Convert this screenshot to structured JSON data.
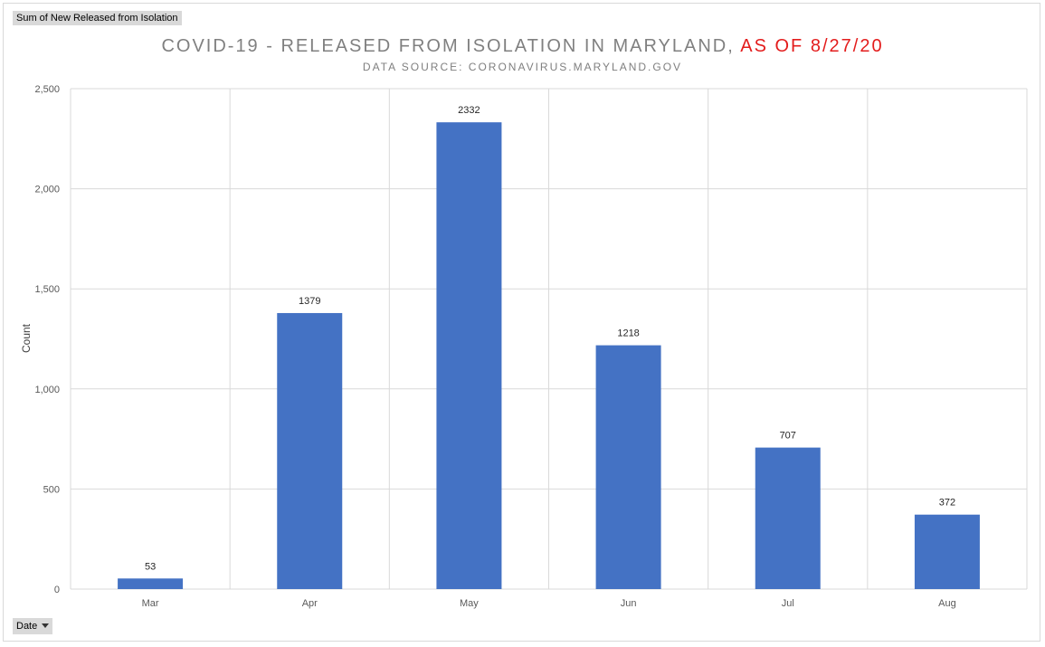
{
  "pivot": {
    "value_field_label": "Sum of New Released from Isolation",
    "axis_field_label": "Date"
  },
  "header": {
    "title_main": "COVID-19 - RELEASED FROM ISOLATION IN MARYLAND,",
    "title_accent": "AS OF 8/27/20",
    "subtitle": "DATA SOURCE: CORONAVIRUS.MARYLAND.GOV"
  },
  "colors": {
    "bar": "#4472c4",
    "accent": "#e31c1c",
    "grid": "#d9d9d9"
  },
  "chart_data": {
    "type": "bar",
    "categories": [
      "Mar",
      "Apr",
      "May",
      "Jun",
      "Jul",
      "Aug"
    ],
    "values": [
      53,
      1379,
      2332,
      1218,
      707,
      372
    ],
    "data_labels": [
      "53",
      "1379",
      "2332",
      "1218",
      "707",
      "372"
    ],
    "title": "COVID-19 - RELEASED FROM ISOLATION IN MARYLAND, AS OF 8/27/20",
    "subtitle": "DATA SOURCE: CORONAVIRUS.MARYLAND.GOV",
    "xlabel": "",
    "ylabel": "Count",
    "ylim": [
      0,
      2500
    ],
    "yticks": [
      0,
      500,
      1000,
      1500,
      2000,
      2500
    ],
    "ytick_labels": [
      "0",
      "500",
      "1,000",
      "1,500",
      "2,000",
      "2,500"
    ],
    "grid": true,
    "legend": "none"
  }
}
